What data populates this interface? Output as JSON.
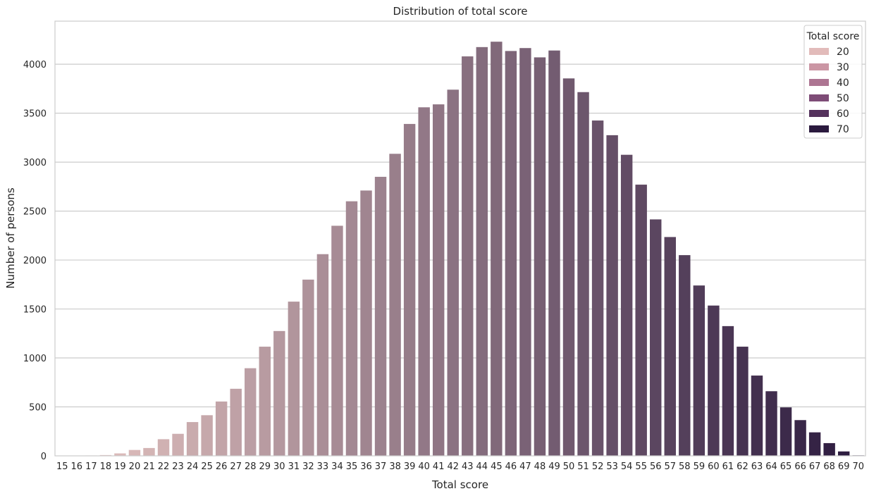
{
  "chart_data": {
    "type": "bar",
    "title": "Distribution of total score",
    "xlabel": "Total score",
    "ylabel": "Number of persons",
    "ylim": [
      0,
      4440
    ],
    "yticks": [
      0,
      500,
      1000,
      1500,
      2000,
      2500,
      3000,
      3500,
      4000
    ],
    "grid": true,
    "legend_placement": "top-right",
    "categories": [
      "15",
      "16",
      "17",
      "18",
      "19",
      "20",
      "21",
      "22",
      "23",
      "24",
      "25",
      "26",
      "27",
      "28",
      "29",
      "30",
      "31",
      "32",
      "33",
      "34",
      "35",
      "36",
      "37",
      "38",
      "39",
      "40",
      "41",
      "42",
      "43",
      "44",
      "45",
      "46",
      "47",
      "48",
      "49",
      "50",
      "51",
      "52",
      "53",
      "54",
      "55",
      "56",
      "57",
      "58",
      "59",
      "60",
      "61",
      "62",
      "63",
      "64",
      "65",
      "66",
      "67",
      "68",
      "69",
      "70"
    ],
    "values": [
      1,
      2,
      4,
      8,
      25,
      60,
      80,
      170,
      225,
      345,
      415,
      555,
      685,
      895,
      1115,
      1275,
      1575,
      1800,
      2060,
      2350,
      2600,
      2710,
      2850,
      3085,
      3390,
      3560,
      3590,
      3740,
      4080,
      4175,
      4230,
      4135,
      4165,
      4070,
      4140,
      3855,
      3715,
      3425,
      3275,
      3075,
      2770,
      2415,
      2235,
      2050,
      1740,
      1535,
      1325,
      1115,
      820,
      660,
      495,
      365,
      240,
      130,
      45,
      5
    ],
    "palette": {
      "color_low": "#e8c7c3",
      "color_high": "#2b1a3e",
      "hue_min": 15,
      "hue_max": 70
    },
    "legend": {
      "title": "Total score",
      "entries": [
        {
          "label": "20",
          "color": "#e2bbba"
        },
        {
          "label": "30",
          "color": "#cb96a4"
        },
        {
          "label": "40",
          "color": "#ad7592"
        },
        {
          "label": "50",
          "color": "#7e4c77"
        },
        {
          "label": "60",
          "color": "#55325d"
        },
        {
          "label": "70",
          "color": "#2b1a3e"
        }
      ]
    }
  }
}
